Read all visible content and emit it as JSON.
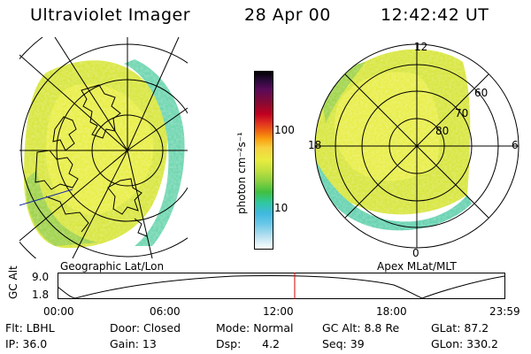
{
  "header": {
    "instrument": "Ultraviolet Imager",
    "date": "28 Apr 00",
    "time": "12:42:42 UT"
  },
  "left_panel": {
    "caption": "Geographic Lat/Lon"
  },
  "right_panel": {
    "caption": "Apex MLat/MLT",
    "mlt_labels": {
      "top": "12",
      "left": "18",
      "right": "6",
      "bottom": "0"
    },
    "lat_labels": [
      "60",
      "70",
      "80"
    ]
  },
  "colorbar": {
    "unit_label": "photon cm⁻²s⁻¹",
    "ticks": [
      "100",
      "10"
    ]
  },
  "altitude_strip": {
    "ylabel": "GC Alt",
    "yticks": [
      "9.0",
      "1.8"
    ],
    "xticks": [
      "00:00",
      "06:00",
      "12:00",
      "18:00",
      "23:59"
    ],
    "current_time_hours": 12.71
  },
  "footer": {
    "row1": [
      "Flt: LBHL",
      "Door: Closed",
      "Mode: Normal",
      "GC Alt: 8.8 Re",
      "GLat:  87.2"
    ],
    "row2": [
      "IP: 36.0",
      "Gain: 13",
      "Dsp:      4.2",
      "Seq: 39",
      "GLon: 330.2"
    ]
  },
  "colors": {
    "marker": "#d40000",
    "aurora_main": "#d7e83a",
    "aurora_edge": "#5fd0b4"
  }
}
